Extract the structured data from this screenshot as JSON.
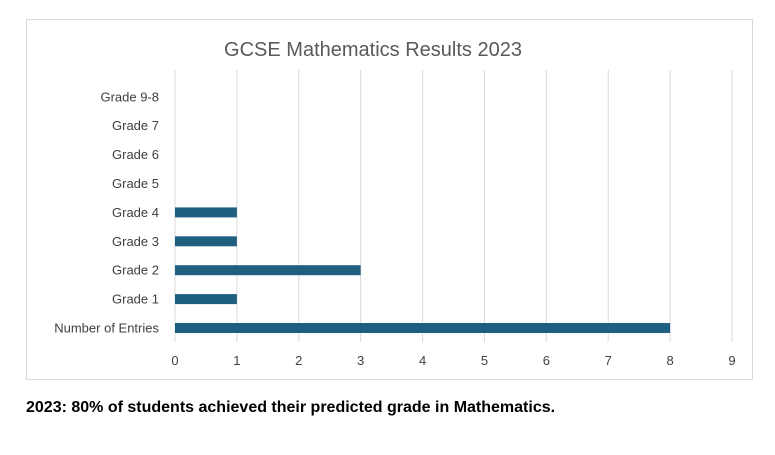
{
  "chart_data": {
    "type": "bar",
    "orientation": "horizontal",
    "title": "GCSE Mathematics Results 2023",
    "categories": [
      "Number of Entries",
      "Grade 1",
      "Grade 2",
      "Grade 3",
      "Grade 4",
      "Grade 5",
      "Grade 6",
      "Grade 7",
      "Grade 9-8"
    ],
    "values": [
      8,
      1,
      3,
      1,
      1,
      0,
      0,
      0,
      0
    ],
    "xlabel": "",
    "ylabel": "",
    "xlim": [
      0,
      9
    ],
    "x_ticks": [
      0,
      1,
      2,
      3,
      4,
      5,
      6,
      7,
      8,
      9
    ],
    "grid": "vertical",
    "legend": "none",
    "bar_color": "#1f5f80"
  },
  "caption": "2023: 80% of students achieved their predicted grade in Mathematics."
}
